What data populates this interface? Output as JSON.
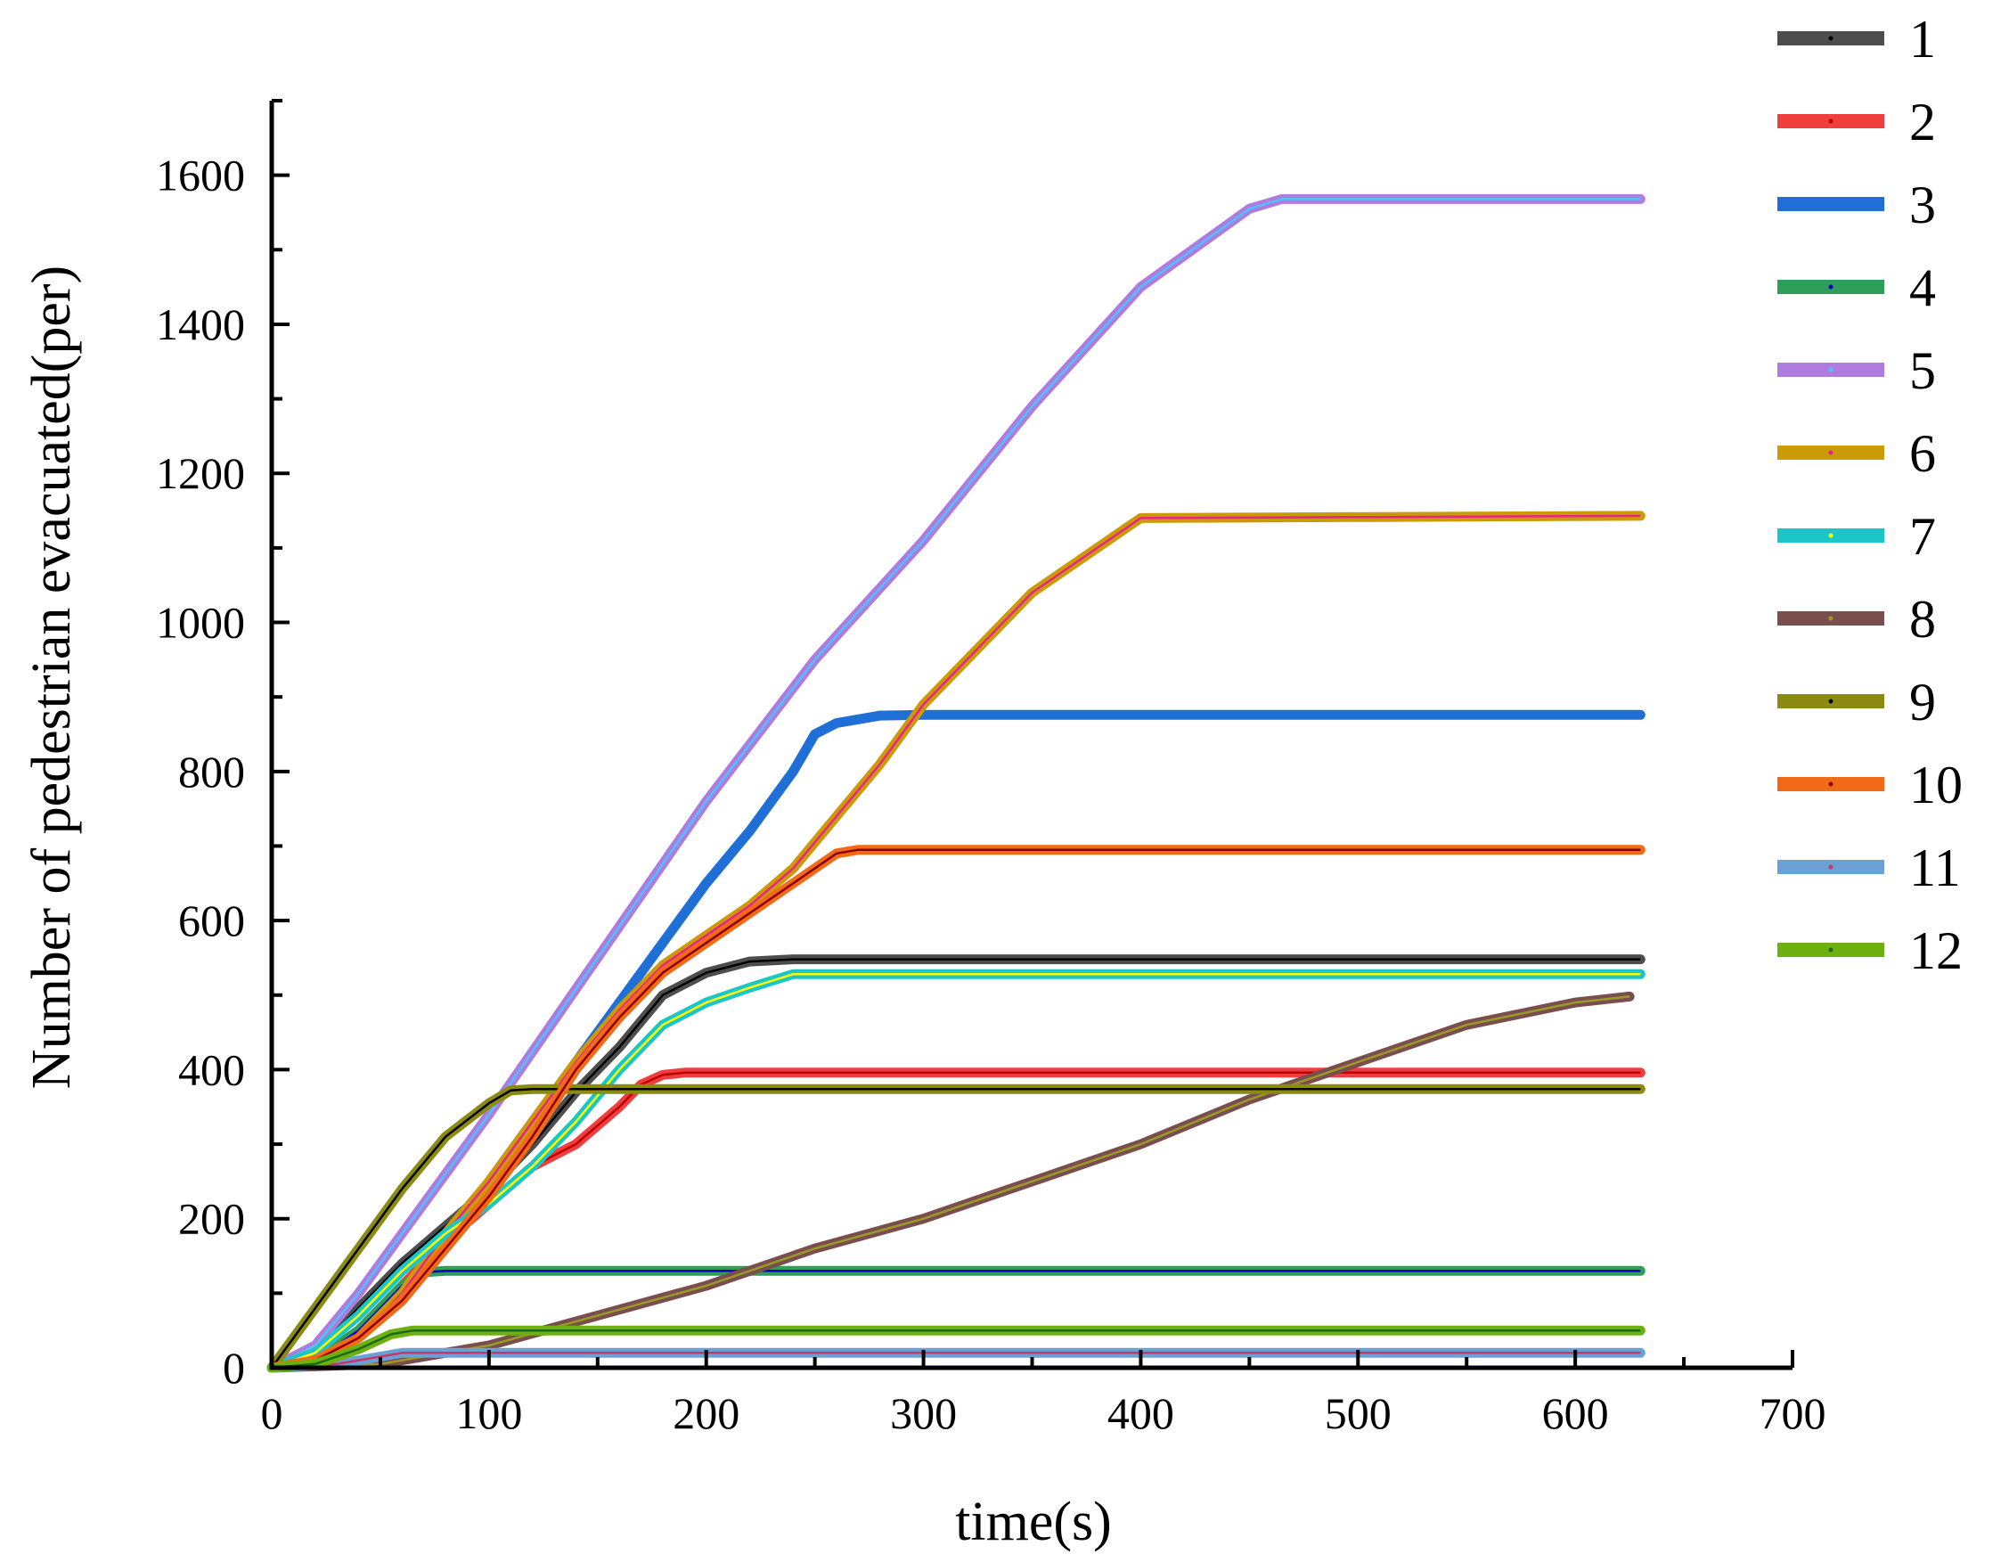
{
  "chart_data": {
    "type": "line",
    "title": "",
    "xlabel": "time(s)",
    "ylabel": "Number of pedestrian evacuated(per)",
    "xlim": [
      0,
      700
    ],
    "ylim": [
      0,
      1700
    ],
    "xticks": [
      0,
      100,
      200,
      300,
      400,
      500,
      600,
      700
    ],
    "yticks": [
      0,
      200,
      400,
      600,
      800,
      1000,
      1200,
      1400,
      1600
    ],
    "xtick_labels": [
      "0",
      "100",
      "200",
      "300",
      "400",
      "500",
      "600",
      "700"
    ],
    "ytick_labels": [
      "0",
      "200",
      "400",
      "600",
      "800",
      "1000",
      "1200",
      "1400",
      "1600"
    ],
    "grid": false,
    "legend_position": "right",
    "series": [
      {
        "name": "1",
        "color": "#4d4d4d",
        "highlight": "#000000",
        "x": [
          0,
          20,
          40,
          60,
          80,
          100,
          120,
          140,
          160,
          180,
          200,
          220,
          240,
          630
        ],
        "y": [
          0,
          20,
          80,
          140,
          190,
          240,
          300,
          370,
          430,
          500,
          530,
          545,
          548,
          548
        ]
      },
      {
        "name": "2",
        "color": "#ef3e3e",
        "highlight": "#c00000",
        "x": [
          0,
          20,
          40,
          60,
          80,
          100,
          120,
          140,
          160,
          170,
          180,
          190,
          200,
          630
        ],
        "y": [
          0,
          10,
          50,
          110,
          170,
          220,
          270,
          300,
          350,
          380,
          393,
          396,
          396,
          396
        ]
      },
      {
        "name": "3",
        "color": "#1f6fd6",
        "highlight": "#1f6fd6",
        "x": [
          0,
          20,
          40,
          60,
          80,
          100,
          120,
          140,
          160,
          180,
          200,
          220,
          240,
          250,
          260,
          280,
          300,
          630
        ],
        "y": [
          0,
          10,
          40,
          90,
          170,
          250,
          330,
          410,
          490,
          570,
          650,
          720,
          800,
          850,
          865,
          875,
          876,
          876
        ]
      },
      {
        "name": "4",
        "color": "#2f9e5a",
        "highlight": "#0000c0",
        "x": [
          0,
          20,
          40,
          60,
          70,
          80,
          100,
          630
        ],
        "y": [
          0,
          10,
          50,
          110,
          128,
          130,
          130,
          130
        ]
      },
      {
        "name": "5",
        "color": "#b07be0",
        "highlight": "#4fc3f7",
        "x": [
          0,
          20,
          40,
          60,
          80,
          100,
          150,
          200,
          250,
          300,
          350,
          400,
          450,
          465,
          630
        ],
        "y": [
          0,
          30,
          100,
          180,
          260,
          340,
          550,
          760,
          950,
          1110,
          1290,
          1450,
          1555,
          1568,
          1568
        ]
      },
      {
        "name": "6",
        "color": "#cc9a06",
        "highlight": "#e8248c",
        "x": [
          0,
          20,
          40,
          60,
          80,
          100,
          120,
          140,
          160,
          180,
          200,
          220,
          240,
          260,
          280,
          300,
          350,
          400,
          630
        ],
        "y": [
          0,
          10,
          40,
          100,
          180,
          250,
          330,
          410,
          480,
          540,
          580,
          620,
          670,
          740,
          810,
          890,
          1040,
          1140,
          1143
        ]
      },
      {
        "name": "7",
        "color": "#1ac6c6",
        "highlight": "#ffff00",
        "x": [
          0,
          20,
          40,
          60,
          80,
          100,
          120,
          140,
          160,
          180,
          200,
          220,
          240,
          630
        ],
        "y": [
          0,
          20,
          70,
          130,
          180,
          220,
          270,
          330,
          400,
          460,
          490,
          510,
          528,
          528
        ]
      },
      {
        "name": "8",
        "color": "#7b4e4e",
        "highlight": "#9a9a2a",
        "x": [
          0,
          50,
          100,
          150,
          200,
          250,
          300,
          350,
          400,
          450,
          500,
          550,
          600,
          625
        ],
        "y": [
          0,
          5,
          30,
          70,
          110,
          160,
          200,
          250,
          300,
          360,
          410,
          460,
          490,
          498
        ]
      },
      {
        "name": "9",
        "color": "#8b8b12",
        "highlight": "#000000",
        "x": [
          0,
          20,
          40,
          60,
          80,
          100,
          110,
          120,
          630
        ],
        "y": [
          0,
          80,
          160,
          240,
          310,
          355,
          372,
          374,
          374
        ]
      },
      {
        "name": "10",
        "color": "#f36a16",
        "highlight": "#8b0000",
        "x": [
          0,
          20,
          40,
          60,
          80,
          100,
          120,
          140,
          160,
          180,
          200,
          220,
          240,
          260,
          270,
          630
        ],
        "y": [
          0,
          10,
          40,
          90,
          160,
          230,
          310,
          400,
          470,
          530,
          570,
          610,
          650,
          690,
          695,
          695
        ]
      },
      {
        "name": "11",
        "color": "#6aa0d6",
        "highlight": "#cc3366",
        "x": [
          0,
          30,
          50,
          60,
          630
        ],
        "y": [
          0,
          5,
          15,
          20,
          20
        ]
      },
      {
        "name": "12",
        "color": "#6db00f",
        "highlight": "#1a6b1a",
        "x": [
          0,
          20,
          40,
          55,
          65,
          630
        ],
        "y": [
          0,
          5,
          25,
          45,
          50,
          50
        ]
      }
    ]
  }
}
